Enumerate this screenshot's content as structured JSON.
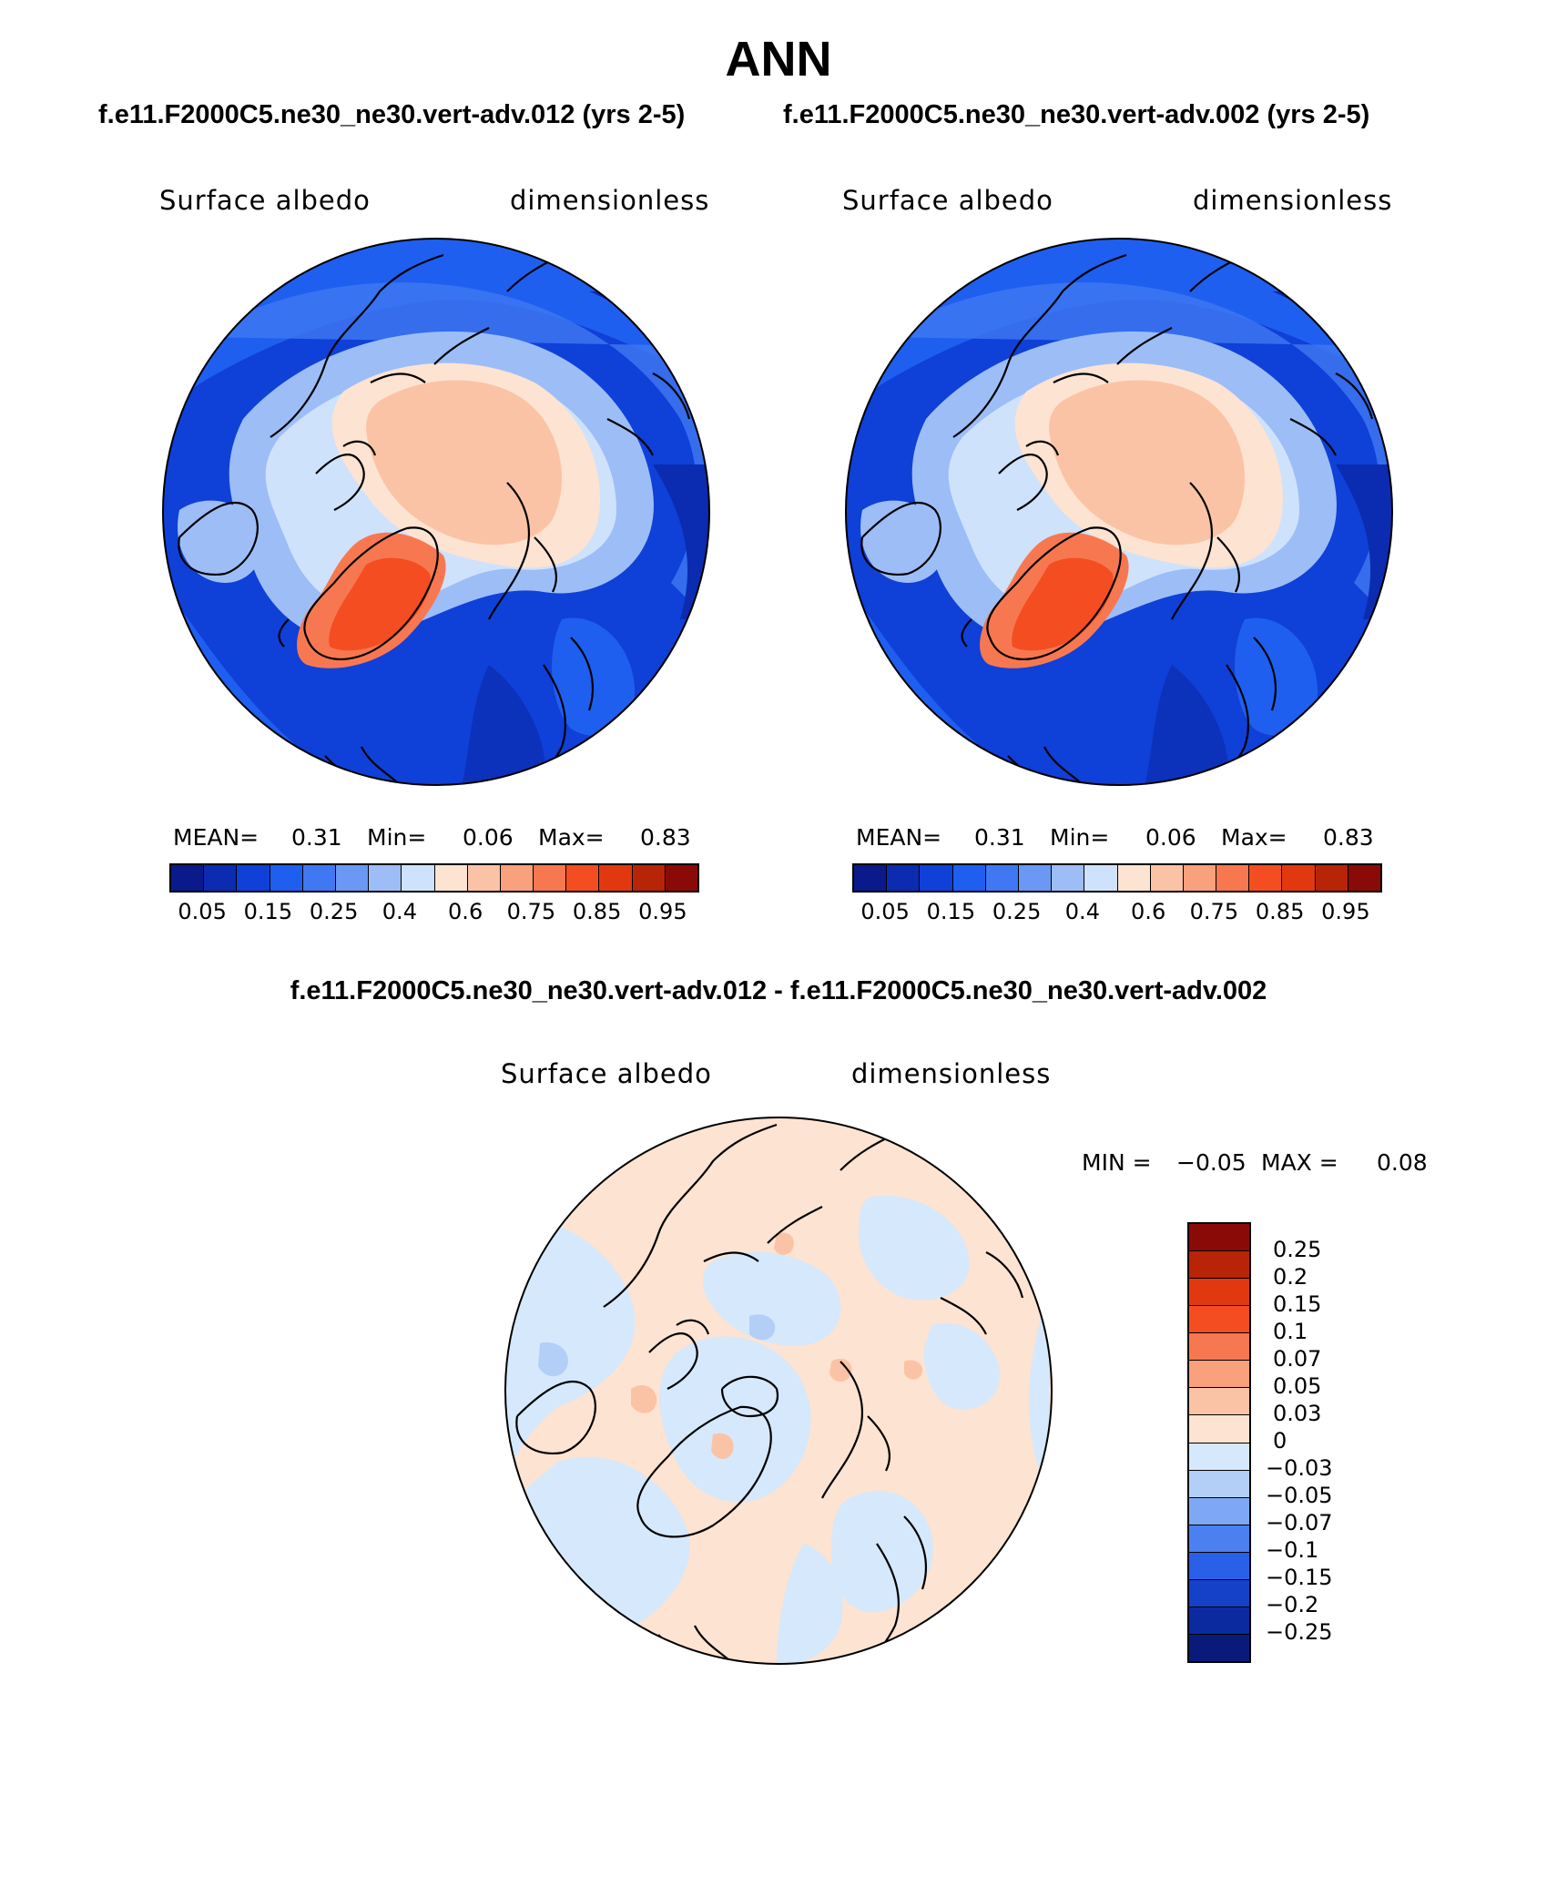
{
  "title": "ANN",
  "panel_left": {
    "case": "f.e11.F2000C5.ne30_ne30.vert-adv.012 (yrs 2-5)",
    "variable": "Surface albedo",
    "units": "dimensionless",
    "stats": {
      "mean_label": "MEAN=",
      "mean": "0.31",
      "min_label": "Min=",
      "min": "0.06",
      "max_label": "Max=",
      "max": "0.83"
    }
  },
  "panel_right": {
    "case": "f.e11.F2000C5.ne30_ne30.vert-adv.002 (yrs 2-5)",
    "variable": "Surface albedo",
    "units": "dimensionless",
    "stats": {
      "mean_label": "MEAN=",
      "mean": "0.31",
      "min_label": "Min=",
      "min": "0.06",
      "max_label": "Max=",
      "max": "0.83"
    }
  },
  "colorbar_abs": {
    "colors": [
      "#0a1a8a",
      "#0b2cb0",
      "#0f40d8",
      "#1f5ff0",
      "#3f78f2",
      "#6a98f4",
      "#9dbdf7",
      "#cfe2fb",
      "#fde3d2",
      "#fbc3a6",
      "#f9a07c",
      "#f77850",
      "#f54d22",
      "#e23810",
      "#b82408",
      "#8a0a08"
    ],
    "labels": [
      "0.05",
      "0.15",
      "0.25",
      "0.4",
      "0.6",
      "0.75",
      "0.85",
      "0.95"
    ]
  },
  "panel_diff": {
    "title": "f.e11.F2000C5.ne30_ne30.vert-adv.012 - f.e11.F2000C5.ne30_ne30.vert-adv.002",
    "variable": "Surface albedo",
    "units": "dimensionless",
    "min_label": "MIN =",
    "min": "−0.05",
    "max_label": "MAX =",
    "max": "0.08"
  },
  "colorbar_diff": {
    "colors": [
      "#8a0a08",
      "#b82408",
      "#e23810",
      "#f54d22",
      "#f77850",
      "#f9a07c",
      "#fbc3a6",
      "#fde3d2",
      "#d6e8fb",
      "#b3cff8",
      "#7fa8f4",
      "#4c80f0",
      "#2a5fe8",
      "#1540c8",
      "#0b2aa0",
      "#0a1a7a"
    ],
    "labels": [
      "0.25",
      "0.2",
      "0.15",
      "0.1",
      "0.07",
      "0.05",
      "0.03",
      "0",
      "−0.03",
      "−0.05",
      "−0.07",
      "−0.1",
      "−0.15",
      "−0.2",
      "−0.25"
    ]
  }
}
